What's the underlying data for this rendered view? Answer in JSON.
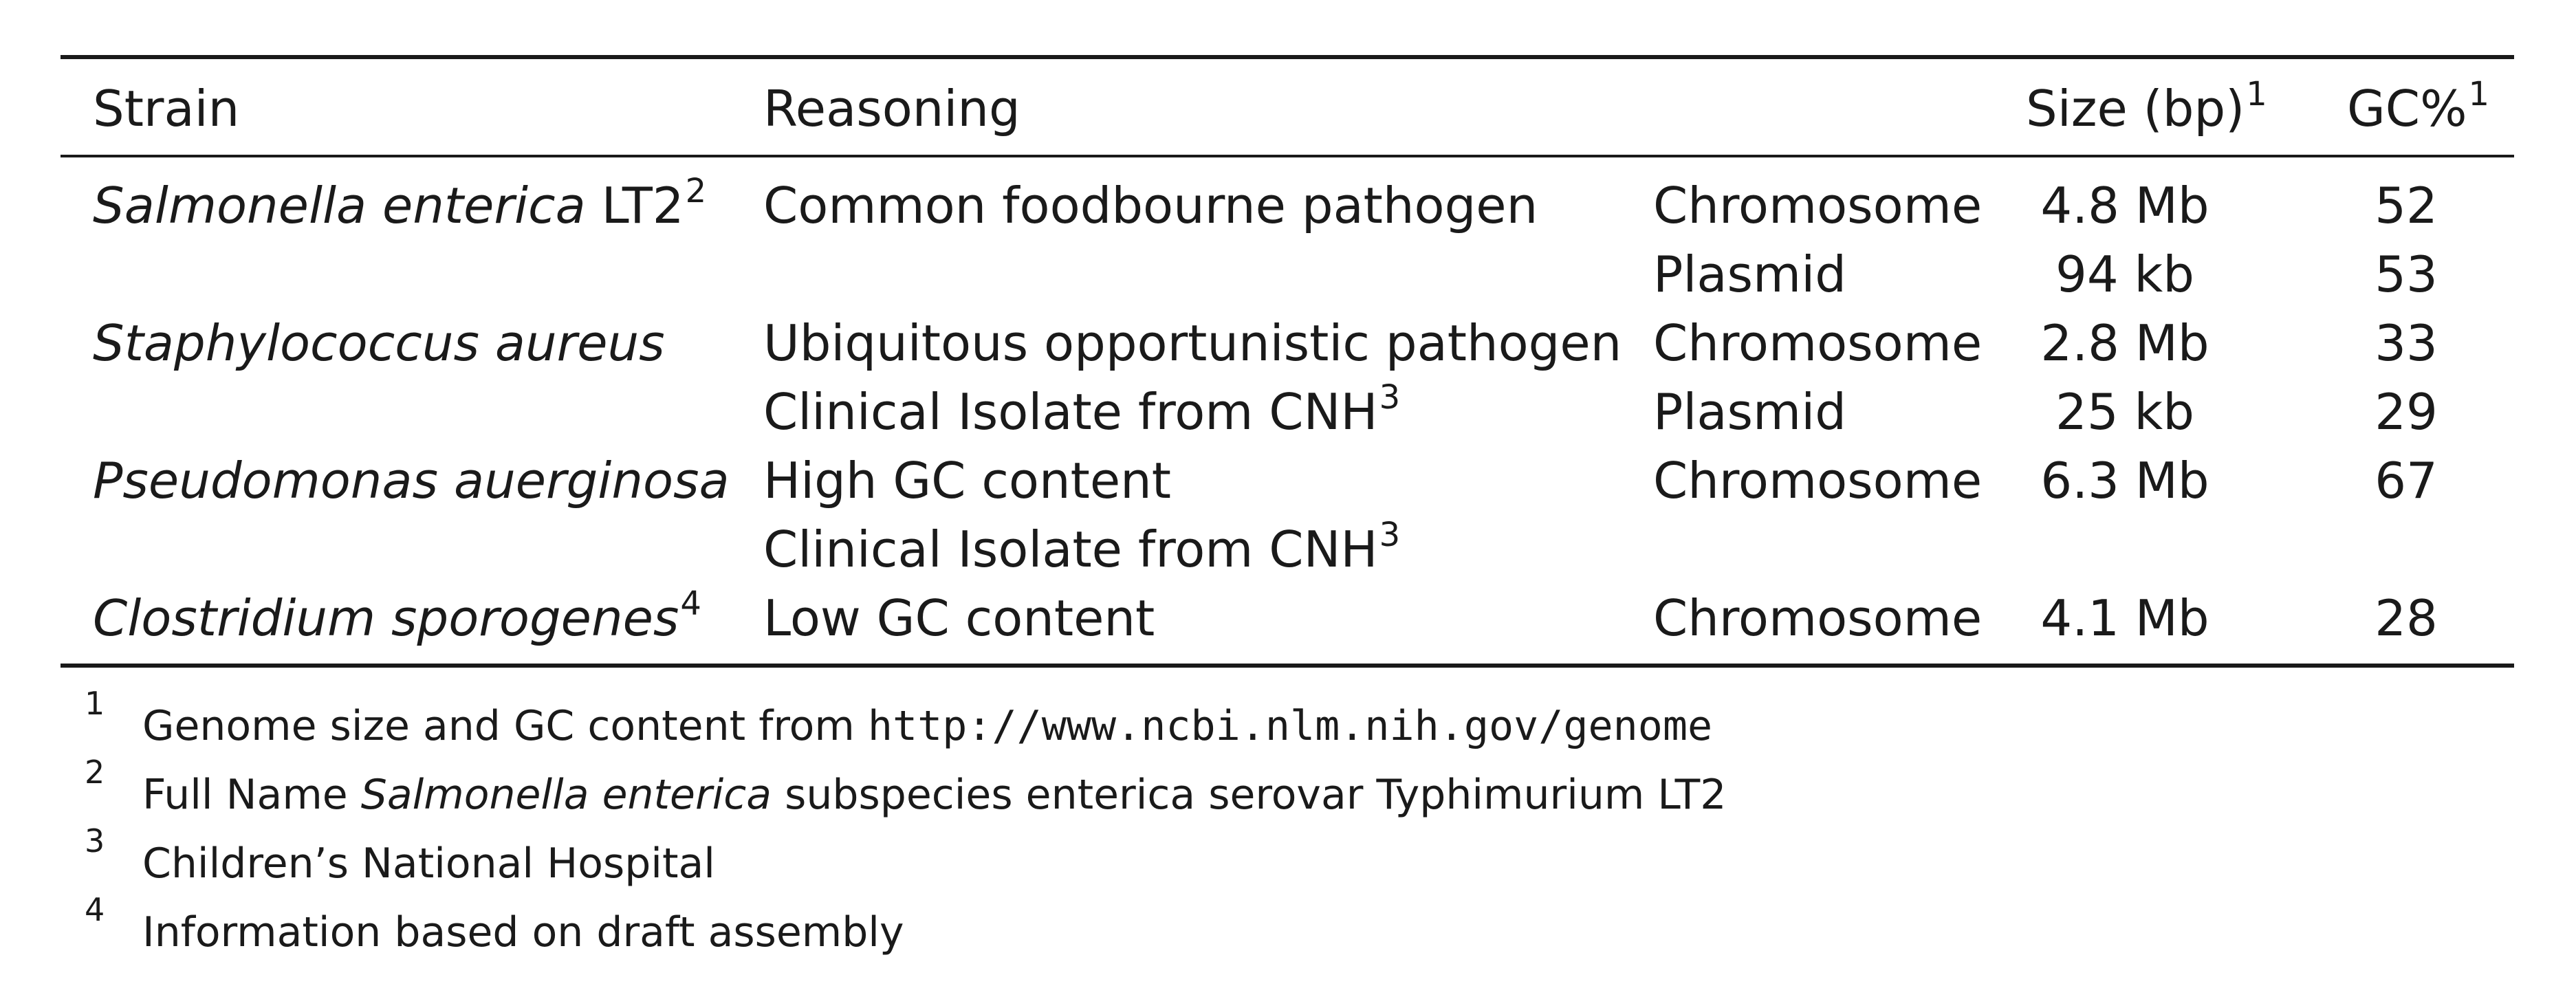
{
  "table": {
    "headers": {
      "strain": "Strain",
      "reasoning": "Reasoning",
      "size": "Size (bp)",
      "size_note": "1",
      "gc": "GC%",
      "gc_note": "1"
    },
    "rows": [
      {
        "strain": "Salmonella enterica",
        "strain_suffix": " LT2",
        "strain_note": "2",
        "reasoning": "Common foodbourne pathogen",
        "reasoning_note": "",
        "type": "Chromosome",
        "size": "4.8 Mb",
        "gc": "52"
      },
      {
        "strain": "",
        "strain_suffix": "",
        "strain_note": "",
        "reasoning": "",
        "reasoning_note": "",
        "type": "Plasmid",
        "size": "94 kb",
        "gc": "53"
      },
      {
        "strain": "Staphylococcus aureus",
        "strain_suffix": "",
        "strain_note": "",
        "reasoning": "Ubiquitous opportunistic pathogen",
        "reasoning_note": "",
        "type": "Chromosome",
        "size": "2.8 Mb",
        "gc": "33"
      },
      {
        "strain": "",
        "strain_suffix": "",
        "strain_note": "",
        "reasoning": "Clinical Isolate from CNH",
        "reasoning_note": "3",
        "type": "Plasmid",
        "size": "25 kb",
        "gc": "29"
      },
      {
        "strain": "Pseudomonas auerginosa",
        "strain_suffix": "",
        "strain_note": "",
        "reasoning": "High GC content",
        "reasoning_note": "",
        "type": "Chromosome",
        "size": "6.3 Mb",
        "gc": "67"
      },
      {
        "strain": "",
        "strain_suffix": "",
        "strain_note": "",
        "reasoning": "Clinical Isolate from CNH",
        "reasoning_note": "3",
        "type": "",
        "size": "",
        "gc": ""
      },
      {
        "strain": "Clostridium sporogenes",
        "strain_suffix": "",
        "strain_note": "4",
        "reasoning": "Low GC content",
        "reasoning_note": "",
        "type": "Chromosome",
        "size": "4.1 Mb",
        "gc": "28"
      }
    ]
  },
  "footnotes": [
    {
      "num": "1",
      "text": "Genome size and GC content from ",
      "url": "http://www.ncbi.nlm.nih.gov/genome"
    },
    {
      "num": "2",
      "prefix": "Full Name ",
      "italic": "Salmonella enterica",
      "text": " subspecies enterica serovar Typhimurium LT2"
    },
    {
      "num": "3",
      "text": "Children’s National Hospital"
    },
    {
      "num": "4",
      "text": "Information based on draft assembly"
    }
  ]
}
